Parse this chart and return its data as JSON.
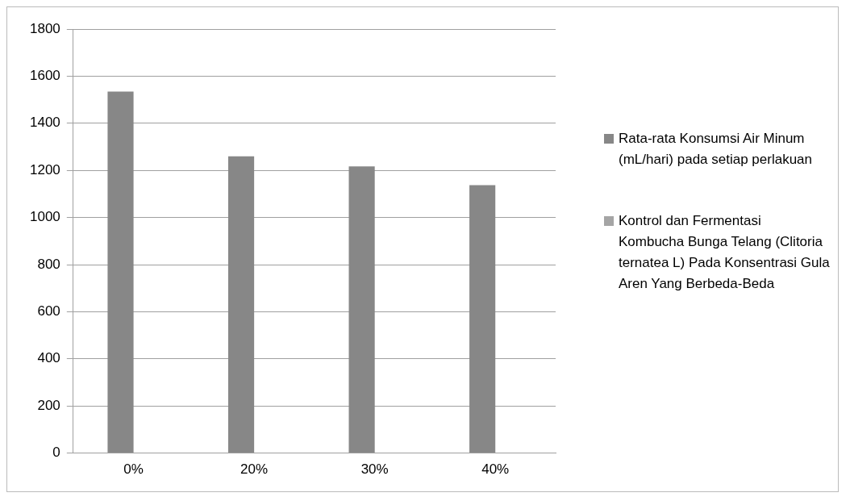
{
  "chart_data": {
    "type": "bar",
    "categories": [
      "0%",
      "20%",
      "30%",
      "40%"
    ],
    "series": [
      {
        "name": "Rata-rata Konsumsi Air Minum (mL/hari) pada setiap perlakuan",
        "color": "#878787",
        "values": [
          1535,
          1260,
          1217,
          1137
        ]
      },
      {
        "name": "Kontrol dan Fermentasi Kombucha Bunga Telang (Clitoria ternatea L) Pada Konsentrasi Gula Aren Yang Berbeda-Beda",
        "color": "#a5a5a5",
        "values": [
          null,
          null,
          null,
          null
        ]
      }
    ],
    "ylim": [
      0,
      1800
    ],
    "yticks": [
      0,
      200,
      400,
      600,
      800,
      1000,
      1200,
      1400,
      1600,
      1800
    ],
    "grid": "y",
    "legend": "right"
  }
}
